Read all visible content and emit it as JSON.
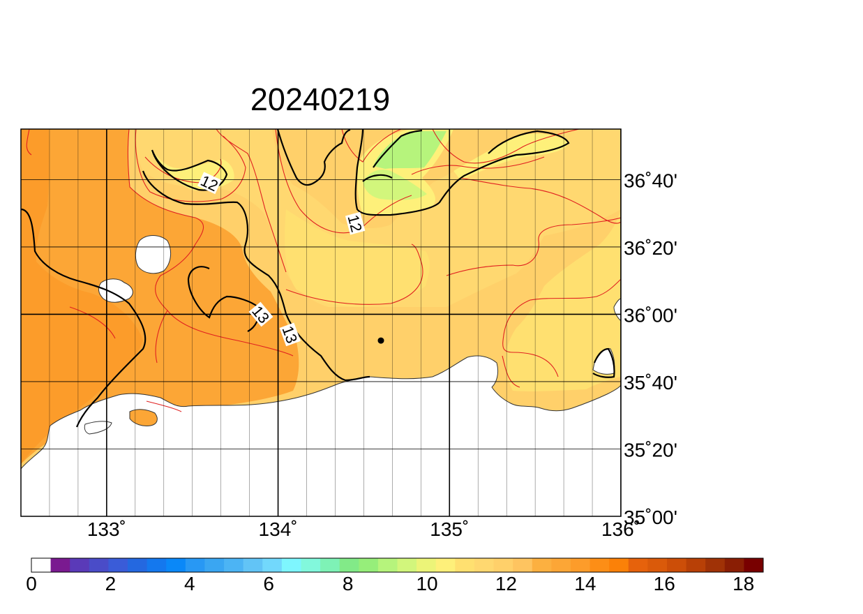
{
  "title": "20240219",
  "map": {
    "lon_range": [
      132.5,
      136.0
    ],
    "lat_range": [
      35.0,
      36.9166667
    ],
    "lat_labels": [
      {
        "lat": 36.6666667,
        "text": "36˚40'"
      },
      {
        "lat": 36.3333333,
        "text": "36˚20'"
      },
      {
        "lat": 36.0,
        "text": "36˚00'"
      },
      {
        "lat": 35.6666667,
        "text": "35˚40'"
      },
      {
        "lat": 35.3333333,
        "text": "35˚20'"
      },
      {
        "lat": 35.0,
        "text": "35˚00'"
      }
    ],
    "lon_labels": [
      {
        "lon": 133,
        "text": "133˚"
      },
      {
        "lon": 134,
        "text": "134˚"
      },
      {
        "lon": 135,
        "text": "135˚"
      },
      {
        "lon": 136,
        "text": "136˚"
      }
    ],
    "contour_labels": [
      {
        "text": "12",
        "lon": 133.6,
        "lat": 36.65,
        "angle": 25
      },
      {
        "text": "12",
        "lon": 134.45,
        "lat": 36.45,
        "angle": 75
      },
      {
        "text": "13",
        "lon": 133.9,
        "lat": 36.0,
        "angle": 50
      },
      {
        "text": "13",
        "lon": 134.07,
        "lat": 35.9,
        "angle": 70
      }
    ],
    "marker": {
      "lon": 134.6,
      "lat": 35.87
    }
  },
  "colorbar": {
    "min": 0,
    "max": 18.5,
    "step": 0.5,
    "tick_labels": [
      "0",
      "2",
      "4",
      "6",
      "8",
      "10",
      "12",
      "14",
      "16",
      "18"
    ],
    "colors": [
      "#ffffff",
      "#7a1a90",
      "#5a3ab8",
      "#4a4cc8",
      "#3a5cd8",
      "#2468e0",
      "#1478ee",
      "#0a88f8",
      "#2898f4",
      "#3aa6f2",
      "#4cb4f4",
      "#62c4f6",
      "#72d8fc",
      "#7ef6fe",
      "#82f8dc",
      "#7ef2b6",
      "#82ea88",
      "#96ee7a",
      "#b6f47c",
      "#d2f67c",
      "#ecf478",
      "#fef07a",
      "#ffe070",
      "#ffd870",
      "#ffd06a",
      "#fec460",
      "#fcb040",
      "#fca636",
      "#fd9c2a",
      "#fd8e16",
      "#fb8108",
      "#e6620c",
      "#da5a0a",
      "#cc4e08",
      "#b84006",
      "#a03206",
      "#8a1e04",
      "#780000"
    ]
  }
}
